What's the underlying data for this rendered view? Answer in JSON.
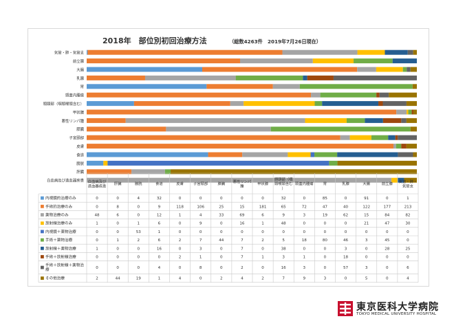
{
  "chart_data": {
    "type": "bar",
    "orientation": "horizontal",
    "stacked": "100%",
    "title": "2018年　部位別初回治療方法",
    "subtitle": "（総数4263件　2019年7月26日現在）",
    "categories": [
      "気管・肺・気管支",
      "前立腺",
      "大腸",
      "乳腺",
      "胃",
      "頭蓋内腫瘍",
      "頭頸部（咽頭喉頭含む）",
      "甲状腺",
      "悪性リンパ腫",
      "膵臓",
      "子宮頸部",
      "皮膚",
      "食道",
      "膀胱",
      "肝臓",
      "白血病及び造血器疾患"
    ],
    "table_columns": [
      "白血病及び造血器疾患",
      "肝臓",
      "膀胱",
      "食道",
      "皮膚",
      "子宮頸部",
      "膵臓",
      "悪性リンパ腫",
      "甲状腺",
      "頭頸部（咽頭喉頭含む）",
      "頭蓋内腫瘍",
      "胃",
      "乳腺",
      "大腸",
      "前立腺",
      "気管・肺・気管支"
    ],
    "series": [
      {
        "name": "内視鏡的治療のみ",
        "color": "#5b9bd5",
        "values": [
          0,
          0,
          4,
          32,
          0,
          0,
          0,
          0,
          0,
          32,
          0,
          85,
          0,
          91,
          0,
          1
        ]
      },
      {
        "name": "手術的治療のみ",
        "color": "#ed7d31",
        "values": [
          0,
          8,
          0,
          9,
          118,
          106,
          25,
          15,
          181,
          65,
          72,
          47,
          40,
          122,
          177,
          213
        ]
      },
      {
        "name": "薬物治療のみ",
        "color": "#a5a5a5",
        "values": [
          48,
          6,
          0,
          12,
          1,
          4,
          33,
          69,
          6,
          9,
          3,
          19,
          62,
          15,
          84,
          82
        ]
      },
      {
        "name": "放射線治療のみ",
        "color": "#ffc000",
        "values": [
          1,
          0,
          1,
          6,
          0,
          9,
          0,
          16,
          1,
          48,
          0,
          0,
          0,
          21,
          47,
          30
        ]
      },
      {
        "name": "内視鏡＋薬物治療",
        "color": "#4472c4",
        "values": [
          0,
          0,
          53,
          1,
          0,
          0,
          0,
          0,
          0,
          0,
          0,
          0,
          0,
          0,
          0,
          0
        ]
      },
      {
        "name": "手術＋薬物治療",
        "color": "#70ad47",
        "values": [
          0,
          1,
          2,
          6,
          2,
          7,
          44,
          7,
          2,
          5,
          18,
          80,
          46,
          3,
          45,
          0
        ]
      },
      {
        "name": "放射線＋薬物治療",
        "color": "#255e91",
        "values": [
          1,
          0,
          0,
          16,
          0,
          3,
          0,
          7,
          0,
          38,
          0,
          0,
          3,
          0,
          28,
          25
        ]
      },
      {
        "name": "手術＋放射線治療",
        "color": "#9e480e",
        "values": [
          0,
          0,
          0,
          0,
          2,
          1,
          0,
          7,
          1,
          3,
          1,
          0,
          18,
          0,
          0,
          0
        ]
      },
      {
        "name": "手術＋放射線＋薬物治療",
        "color": "#636363",
        "values": [
          0,
          0,
          0,
          4,
          0,
          8,
          0,
          2,
          0,
          16,
          3,
          0,
          57,
          3,
          0,
          6
        ]
      },
      {
        "name": "その他治療",
        "color": "#997300",
        "values": [
          2,
          44,
          19,
          1,
          4,
          0,
          2,
          4,
          2,
          7,
          9,
          3,
          0,
          5,
          0,
          4
        ]
      }
    ]
  },
  "logo": {
    "name": "東京医科大学病院",
    "sub": "TOKYO MEDICAL UNIVERSITY HOSPITAL"
  }
}
